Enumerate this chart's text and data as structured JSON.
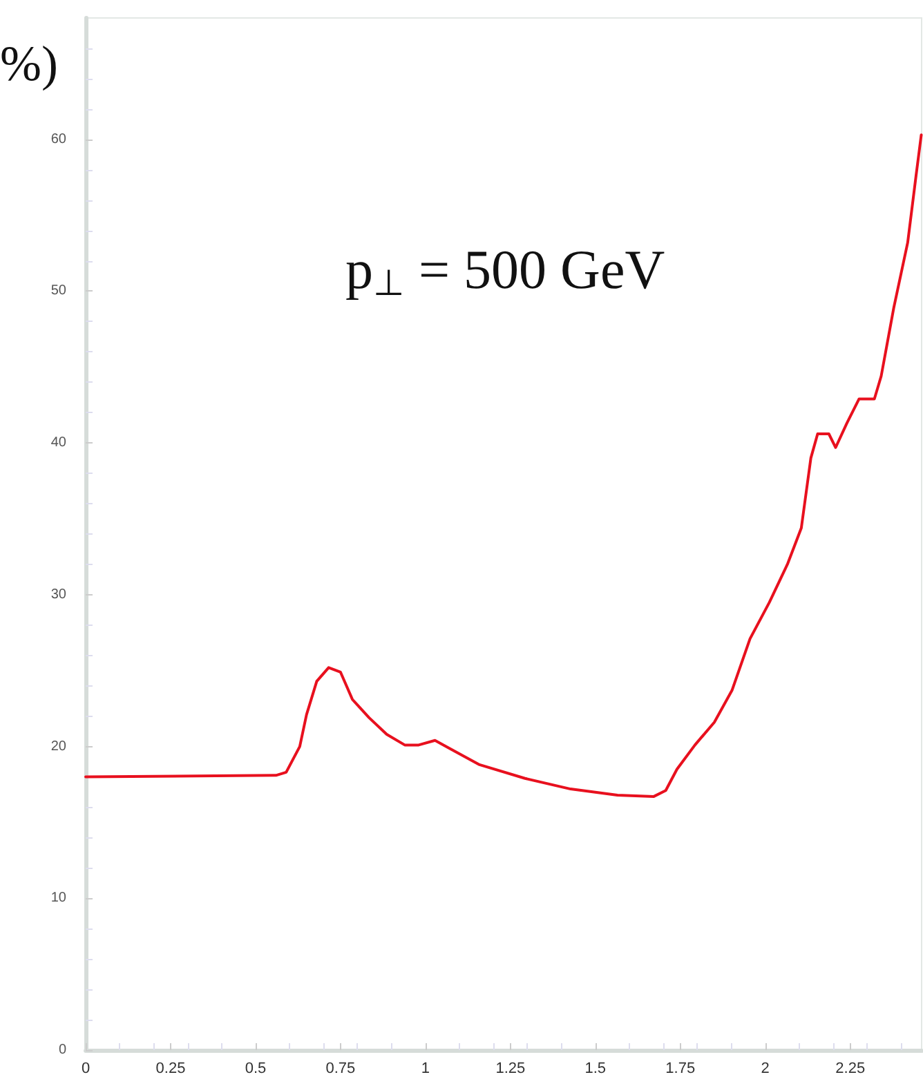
{
  "chart_data": {
    "type": "line",
    "ylabel": "%)",
    "annotations": [
      "p$_{⊥}$ = 500 GeV"
    ],
    "xlim": [
      0,
      2.46
    ],
    "xticks": [
      0,
      0.25,
      0.5,
      0.75,
      1,
      1.25,
      1.5,
      1.75,
      2,
      2.25
    ],
    "ylim": [
      0,
      68
    ],
    "yticks": [
      0,
      10,
      20,
      30,
      40,
      50,
      60
    ],
    "grid": false,
    "marker": "none",
    "line_style": "solid",
    "series": [
      {
        "color": "#e8101e",
        "x": [
          0,
          0.56,
          0.59,
          0.63,
          0.65,
          0.68,
          0.715,
          0.75,
          0.785,
          0.834,
          0.886,
          0.939,
          0.98,
          1.028,
          1.077,
          1.159,
          1.293,
          1.427,
          1.565,
          1.671,
          1.707,
          1.74,
          1.793,
          1.85,
          1.902,
          1.955,
          2.012,
          2.065,
          2.106,
          2.134,
          2.154,
          2.187,
          2.207,
          2.24,
          2.276,
          2.321,
          2.341,
          2.378,
          2.419,
          2.443,
          2.459
        ],
        "values": [
          18.0,
          18.1,
          18.3,
          20.0,
          22.1,
          24.3,
          25.2,
          24.9,
          23.1,
          21.9,
          20.8,
          20.1,
          20.1,
          20.4,
          19.8,
          18.8,
          17.9,
          17.2,
          16.8,
          16.7,
          17.1,
          18.5,
          20.1,
          21.6,
          23.7,
          27.1,
          29.5,
          32.0,
          34.4,
          39.0,
          40.6,
          40.6,
          39.7,
          41.3,
          42.9,
          42.9,
          44.4,
          48.9,
          53.2,
          57.5,
          60.3
        ]
      }
    ]
  }
}
